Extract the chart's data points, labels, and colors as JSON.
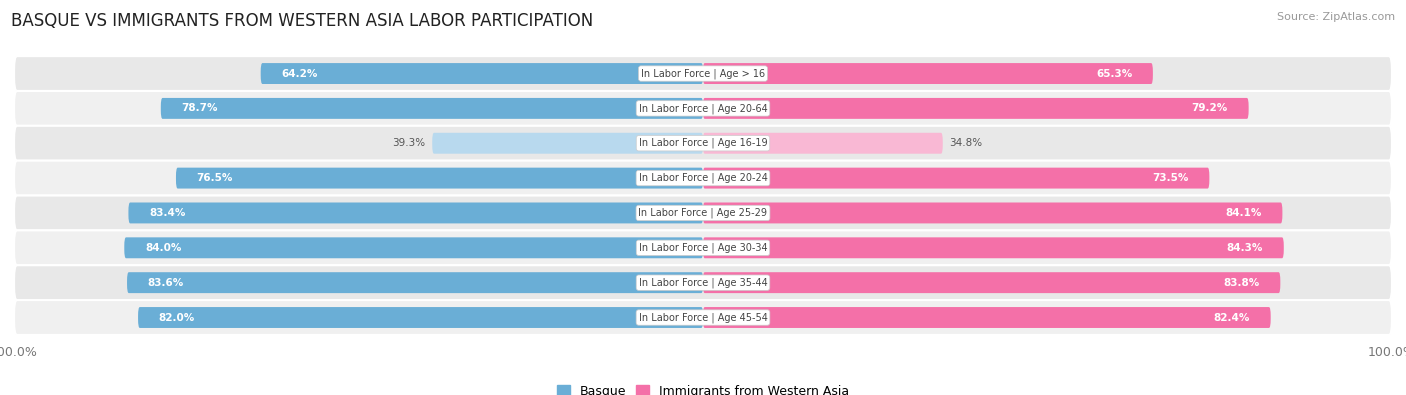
{
  "title": "BASQUE VS IMMIGRANTS FROM WESTERN ASIA LABOR PARTICIPATION",
  "source": "Source: ZipAtlas.com",
  "categories": [
    "In Labor Force | Age > 16",
    "In Labor Force | Age 20-64",
    "In Labor Force | Age 16-19",
    "In Labor Force | Age 20-24",
    "In Labor Force | Age 25-29",
    "In Labor Force | Age 30-34",
    "In Labor Force | Age 35-44",
    "In Labor Force | Age 45-54"
  ],
  "basque_values": [
    64.2,
    78.7,
    39.3,
    76.5,
    83.4,
    84.0,
    83.6,
    82.0
  ],
  "immigrant_values": [
    65.3,
    79.2,
    34.8,
    73.5,
    84.1,
    84.3,
    83.8,
    82.4
  ],
  "basque_color": "#6aaed6",
  "basque_color_light": "#b8d9ee",
  "immigrant_color": "#f470a8",
  "immigrant_color_light": "#f9b8d4",
  "row_bg_colors": [
    "#e8e8e8",
    "#f0f0f0"
  ],
  "max_value": 100.0,
  "bar_height": 0.6,
  "title_fontsize": 12,
  "label_fontsize": 7.5,
  "tick_fontsize": 9,
  "legend_fontsize": 9,
  "light_threshold": 50
}
